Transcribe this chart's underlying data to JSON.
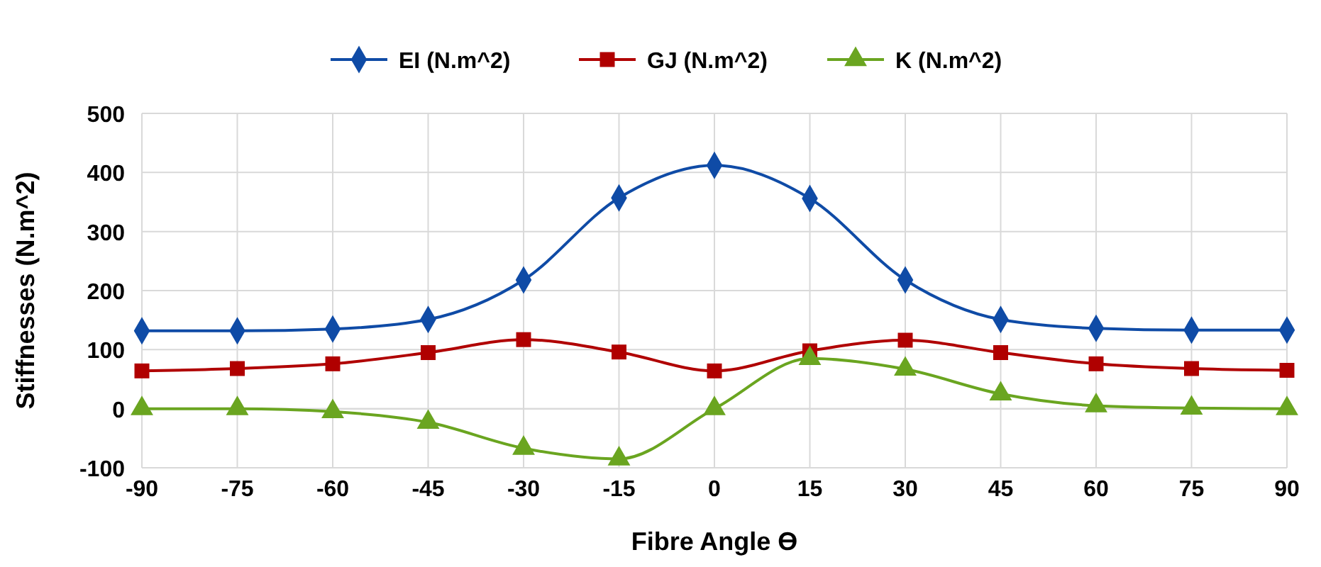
{
  "chart_data": {
    "type": "line",
    "xlabel": "Fibre Angle ϴ",
    "ylabel": "Stiffnesses (N.m^2)",
    "x": [
      -90,
      -75,
      -60,
      -45,
      -30,
      -15,
      0,
      15,
      30,
      45,
      60,
      75,
      90
    ],
    "xlim": [
      -90,
      90
    ],
    "xticks": [
      -90,
      -75,
      -60,
      -45,
      -30,
      -15,
      0,
      15,
      30,
      45,
      60,
      75,
      90
    ],
    "ylim": [
      -100,
      500
    ],
    "yticks": [
      -100,
      0,
      100,
      200,
      300,
      400,
      500
    ],
    "grid": true,
    "legend": "top",
    "line_style": "solid",
    "series": [
      {
        "name": "EI (N.m^2)",
        "color": "#0f4ba6",
        "marker": "diamond",
        "values": [
          132,
          132,
          135,
          151,
          218,
          357,
          412,
          356,
          218,
          151,
          136,
          133,
          133
        ]
      },
      {
        "name": "GJ (N.m^2)",
        "color": "#b00000",
        "marker": "square",
        "values": [
          64,
          68,
          76,
          95,
          117,
          96,
          64,
          98,
          116,
          95,
          76,
          68,
          65
        ]
      },
      {
        "name": "K (N.m^2)",
        "color": "#6aa520",
        "marker": "triangle",
        "values": [
          0,
          0,
          -5,
          -23,
          -67,
          -85,
          0,
          85,
          67,
          25,
          5,
          1,
          0
        ]
      }
    ]
  }
}
